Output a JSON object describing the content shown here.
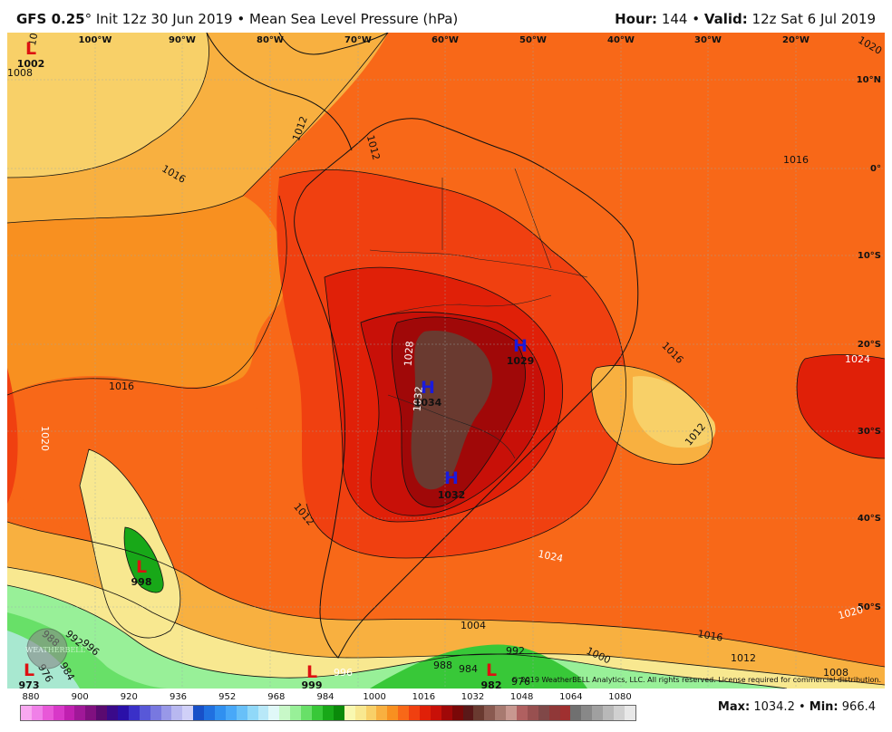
{
  "header": {
    "model": "GFS 0.25",
    "degree": "°",
    "init": " Init 12z 30 Jun 2019",
    "bullet": " • ",
    "product": "Mean Sea Level Pressure (hPa)",
    "hour_label": "Hour:",
    "hour_value": " 144",
    "valid_label": "Valid:",
    "valid_value": " 12z Sat 6 Jul 2019"
  },
  "map": {
    "lon_labels": [
      "100°W",
      "90°W",
      "80°W",
      "70°W",
      "60°W",
      "50°W",
      "40°W",
      "30°W",
      "20°W"
    ],
    "lat_labels": [
      "10°N",
      "0°",
      "10°S",
      "20°S",
      "30°S",
      "40°S",
      "50°S"
    ],
    "isobar_labels": [
      "1016",
      "1016",
      "1020",
      "1012",
      "1024",
      "1012",
      "1016",
      "1012",
      "1028",
      "1032",
      "1024",
      "1020",
      "1016",
      "1012",
      "1008",
      "1004",
      "1000",
      "992",
      "988",
      "984",
      "996",
      "996",
      "988",
      "992",
      "984",
      "976",
      "976",
      "1012",
      "1016",
      "1008",
      "1012",
      "1020"
    ],
    "centers": [
      {
        "type": "L",
        "value": "1002",
        "color": "#d11"
      },
      {
        "type": "H",
        "value": "1029",
        "color": "#1a1adc"
      },
      {
        "type": "H",
        "value": "1034",
        "color": "#1a1adc"
      },
      {
        "type": "H",
        "value": "1032",
        "color": "#1a1adc"
      },
      {
        "type": "L",
        "value": "998",
        "color": "#d11"
      },
      {
        "type": "L",
        "value": "973",
        "color": "#d11"
      },
      {
        "type": "L",
        "value": "999",
        "color": "#d11"
      },
      {
        "type": "L",
        "value": "982",
        "color": "#d11"
      }
    ],
    "watermark": "WEATHERBELL",
    "copyright": "© 2019 WeatherBELL Analytics, LLC. All rights reserved. License required for commercial distribution."
  },
  "colorbar": {
    "ticks": [
      "880",
      "900",
      "920",
      "936",
      "952",
      "968",
      "984",
      "1000",
      "1016",
      "1032",
      "1048",
      "1064",
      "1080"
    ],
    "colors": [
      "#f8a8f0",
      "#f080e8",
      "#e858d8",
      "#d838c8",
      "#c020b0",
      "#a01898",
      "#801080",
      "#5a0a70",
      "#3a0a8a",
      "#2a10a8",
      "#3a30c8",
      "#5858d8",
      "#7878e0",
      "#9898e8",
      "#b8b8f0",
      "#d0d0f8",
      "#1850c8",
      "#2070e0",
      "#3090f0",
      "#48a8f8",
      "#68c0f8",
      "#90d8f8",
      "#b8e8f8",
      "#e0f8f8",
      "#c8f8c8",
      "#98f098",
      "#68e068",
      "#38c838",
      "#18a818",
      "#0a8a0a",
      "#f8f8b0",
      "#f8e890",
      "#f8d068",
      "#f8b040",
      "#f89020",
      "#f86818",
      "#f04010",
      "#e02008",
      "#c81008",
      "#a00808",
      "#7a0808",
      "#5a1818",
      "#6a3a30",
      "#8a5a50",
      "#a87a70",
      "#c89890",
      "#b06060",
      "#985050",
      "#804848",
      "#903838",
      "#a03030",
      "#707070",
      "#888888",
      "#a0a0a0",
      "#b8b8b8",
      "#d0d0d0",
      "#e8e8e8"
    ]
  },
  "stats": {
    "max_label": "Max:",
    "max_value": " 1034.2",
    "min_label": "Min:",
    "min_value": " 966.4",
    "separator": " • "
  }
}
